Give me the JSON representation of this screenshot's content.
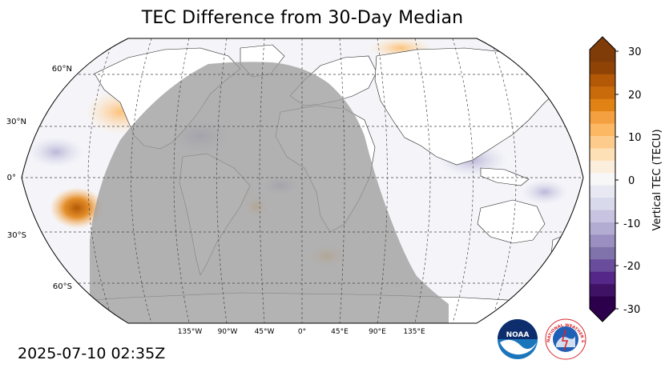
{
  "title": "TEC Difference from 30-Day Median",
  "timestamp": "2025-07-10 02:35Z",
  "map": {
    "projection": "robinson",
    "lat_labels": [
      "60°N",
      "30°N",
      "0°",
      "30°S",
      "60°S"
    ],
    "lon_labels": [
      "135°W",
      "90°W",
      "45°W",
      "0°",
      "45°E",
      "90°E",
      "135°E"
    ],
    "night_shading_color": "#9e9e9e",
    "positive_anomaly_color": "#b35806",
    "negative_anomaly_color": "#542788"
  },
  "colorbar": {
    "label": "Vertical TEC (TECU)",
    "tick_labels": [
      "30",
      "20",
      "10",
      "0",
      "-10",
      "-20",
      "-30"
    ],
    "range": [
      -30,
      30
    ],
    "colors": [
      "#2d004b",
      "#3f1266",
      "#542788",
      "#6a4c9c",
      "#8073ac",
      "#9a8fc0",
      "#b2abd2",
      "#c7c3e1",
      "#d8daeb",
      "#e7e8f2",
      "#f7f7f7",
      "#fbeedc",
      "#fee0b6",
      "#fdcb8b",
      "#fdb863",
      "#f4a041",
      "#e08214",
      "#c96a0b",
      "#b35806",
      "#8f4406",
      "#7f3b08"
    ]
  },
  "logos": {
    "noaa_text": "NOAA",
    "nws_text": "NATIONAL WEATHER SERVICE"
  }
}
